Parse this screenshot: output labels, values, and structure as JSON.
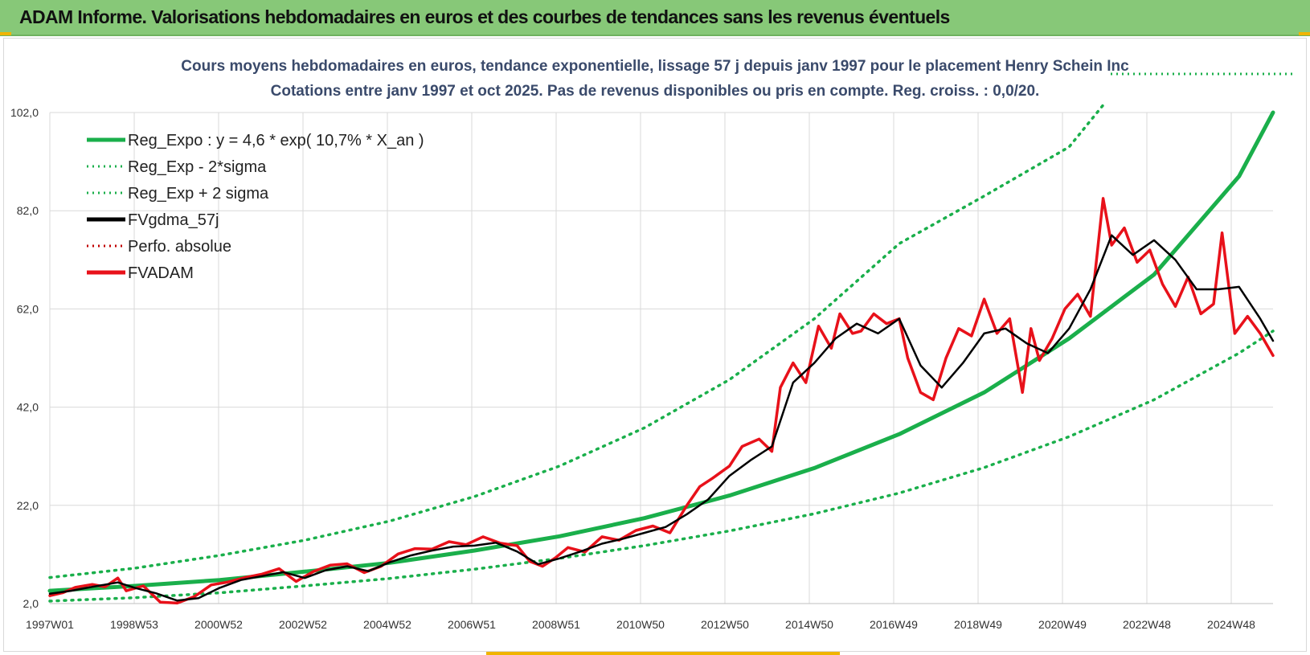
{
  "header": {
    "title": "ADAM Informe. Valorisations hebdomadaires en euros et des courbes de tendances sans les revenus éventuels"
  },
  "colors": {
    "banner": "#87c878",
    "trend_green": "#1aaf4b",
    "band_green": "#1aaf4b",
    "smooth_black": "#000000",
    "price_red": "#e8111a",
    "perf_red": "#c00000",
    "grid": "#d9d9d9"
  },
  "chart_data": {
    "type": "line",
    "title": "Cours moyens hebdomadaires en euros, tendance exponentielle, lissage 57 j depuis janv 1997 pour le placement Henry Schein Inc",
    "subtitle": "Cotations entre janv 1997 et oct 2025. Pas de revenus disponibles ou pris en compte. Reg. croiss. : 0,0/20.",
    "x_ticks": [
      "1997W01",
      "1998W53",
      "2000W52",
      "2002W52",
      "2004W52",
      "2006W51",
      "2008W51",
      "2010W50",
      "2012W50",
      "2014W50",
      "2016W49",
      "2018W49",
      "2020W49",
      "2022W48",
      "2024W48"
    ],
    "x_range": [
      1997.0,
      2025.8
    ],
    "y_ticks": [
      "2,0",
      "22,0",
      "42,0",
      "62,0",
      "82,0",
      "102,0"
    ],
    "ylim": [
      2,
      102
    ],
    "grid": true,
    "legend_position": "top-left",
    "legend": [
      {
        "label": "Reg_Expo : y = 4,6 * exp( 10,7% *  X_an )",
        "style": "solid",
        "color": "#1aaf4b"
      },
      {
        "label": "Reg_Exp - 2*sigma",
        "style": "dotted",
        "color": "#1aaf4b"
      },
      {
        "label": "Reg_Exp + 2 sigma",
        "style": "dotted",
        "color": "#1aaf4b"
      },
      {
        "label": "FVgdma_57j",
        "style": "solid",
        "color": "#000000"
      },
      {
        "label": "Perfo. absolue",
        "style": "dotted",
        "color": "#c00000"
      },
      {
        "label": "FVADAM",
        "style": "solid",
        "color": "#e8111a"
      }
    ],
    "series": [
      {
        "name": "Reg_Expo : y = 4,6 * exp( 10,7% *  X_an )",
        "x": [
          1997.0,
          1999.0,
          2001.0,
          2003.0,
          2005.0,
          2007.0,
          2009.0,
          2011.0,
          2013.0,
          2015.0,
          2017.0,
          2019.0,
          2021.0,
          2023.0,
          2025.0,
          2025.8
        ],
        "values": [
          4.6,
          5.6,
          6.8,
          8.5,
          10.3,
          12.8,
          15.7,
          19.4,
          24.0,
          29.6,
          36.5,
          45.0,
          56.0,
          69.0,
          89.0,
          102.0
        ]
      },
      {
        "name": "Reg_Exp - 2*sigma",
        "x": [
          1997.0,
          1999.0,
          2001.0,
          2003.0,
          2005.0,
          2007.0,
          2009.0,
          2011.0,
          2013.0,
          2015.0,
          2017.0,
          2019.0,
          2021.0,
          2023.0,
          2025.0,
          2025.8
        ],
        "values": [
          2.5,
          3.2,
          4.2,
          5.6,
          7.1,
          9.0,
          11.2,
          13.8,
          16.8,
          20.3,
          24.5,
          29.7,
          36.0,
          43.5,
          53.0,
          57.5
        ]
      },
      {
        "name": "Reg_Exp + 2 sigma",
        "x": [
          1997.0,
          1999.0,
          2001.0,
          2003.0,
          2005.0,
          2007.0,
          2009.0,
          2011.0,
          2013.0,
          2015.0,
          2017.0,
          2019.0,
          2021.0,
          2021.8
        ],
        "values": [
          7.3,
          9.2,
          11.8,
          14.9,
          18.8,
          23.8,
          30.0,
          37.8,
          47.6,
          60.0,
          75.3,
          85.0,
          95.0,
          103.5
        ]
      },
      {
        "name": "FVgdma_57j",
        "x": [
          1997.0,
          1997.5,
          1998.0,
          1998.6,
          1999.0,
          1999.5,
          2000.0,
          2000.5,
          2001.0,
          2001.5,
          2002.0,
          2002.5,
          2003.0,
          2003.5,
          2004.0,
          2004.5,
          2005.0,
          2005.5,
          2006.0,
          2006.5,
          2007.0,
          2007.5,
          2008.0,
          2008.5,
          2009.0,
          2009.5,
          2010.0,
          2010.5,
          2011.0,
          2011.5,
          2012.0,
          2012.5,
          2013.0,
          2013.5,
          2014.0,
          2014.5,
          2015.0,
          2015.5,
          2016.0,
          2016.5,
          2017.0,
          2017.5,
          2018.0,
          2018.5,
          2019.0,
          2019.5,
          2020.0,
          2020.5,
          2021.0,
          2021.5,
          2022.0,
          2022.5,
          2023.0,
          2023.5,
          2024.0,
          2024.5,
          2025.0,
          2025.5,
          2025.8
        ],
        "values": [
          4.0,
          4.6,
          5.4,
          6.3,
          5.2,
          4.1,
          2.6,
          3.1,
          5.2,
          6.8,
          7.6,
          8.4,
          7.2,
          8.8,
          9.6,
          8.6,
          10.4,
          11.8,
          12.8,
          13.6,
          13.8,
          14.4,
          12.6,
          10.0,
          11.2,
          12.6,
          14.2,
          15.2,
          16.4,
          17.6,
          20.2,
          23.2,
          28.0,
          31.2,
          34.0,
          47.0,
          51.0,
          56.0,
          59.0,
          57.0,
          60.0,
          50.5,
          46.0,
          51.0,
          57.0,
          58.0,
          55.0,
          53.0,
          58.0,
          66.0,
          77.0,
          73.0,
          76.0,
          72.0,
          66.0,
          66.0,
          66.5,
          60.0,
          55.5
        ]
      },
      {
        "name": "FVADAM",
        "x": [
          1997.0,
          1997.3,
          1997.6,
          1998.0,
          1998.3,
          1998.6,
          1998.8,
          1999.2,
          1999.6,
          2000.0,
          2000.4,
          2000.8,
          2001.2,
          2001.6,
          2002.0,
          2002.4,
          2002.8,
          2003.2,
          2003.6,
          2004.0,
          2004.4,
          2004.8,
          2005.2,
          2005.6,
          2006.0,
          2006.4,
          2006.8,
          2007.2,
          2007.6,
          2008.0,
          2008.3,
          2008.6,
          2008.9,
          2009.2,
          2009.6,
          2010.0,
          2010.4,
          2010.8,
          2011.2,
          2011.6,
          2012.0,
          2012.3,
          2012.6,
          2013.0,
          2013.3,
          2013.7,
          2014.0,
          2014.2,
          2014.5,
          2014.8,
          2015.1,
          2015.4,
          2015.6,
          2015.9,
          2016.1,
          2016.4,
          2016.7,
          2017.0,
          2017.2,
          2017.5,
          2017.8,
          2018.1,
          2018.4,
          2018.7,
          2019.0,
          2019.3,
          2019.6,
          2019.9,
          2020.1,
          2020.3,
          2020.6,
          2020.9,
          2021.2,
          2021.5,
          2021.8,
          2022.0,
          2022.3,
          2022.6,
          2022.9,
          2023.2,
          2023.5,
          2023.8,
          2024.1,
          2024.4,
          2024.6,
          2024.9,
          2025.2,
          2025.5,
          2025.8
        ],
        "values": [
          3.6,
          4.2,
          5.3,
          5.9,
          5.4,
          7.2,
          4.6,
          5.6,
          2.3,
          2.1,
          3.4,
          5.8,
          6.4,
          7.3,
          8.0,
          9.1,
          6.5,
          8.5,
          9.8,
          10.1,
          8.3,
          9.6,
          12.1,
          13.2,
          13.1,
          14.6,
          14.0,
          15.6,
          14.3,
          13.8,
          10.6,
          9.6,
          11.3,
          13.4,
          12.5,
          15.6,
          14.9,
          16.9,
          17.8,
          16.4,
          22.0,
          25.8,
          27.5,
          30.0,
          34.0,
          35.5,
          33.0,
          46.0,
          51.0,
          47.0,
          58.5,
          54.0,
          61.0,
          57.0,
          57.5,
          61.0,
          59.0,
          60.0,
          52.0,
          45.0,
          43.5,
          52.0,
          58.0,
          56.5,
          64.0,
          57.0,
          60.0,
          45.0,
          58.0,
          51.5,
          56.0,
          62.0,
          65.0,
          60.5,
          84.5,
          75.0,
          78.5,
          71.5,
          74.0,
          67.0,
          62.5,
          68.5,
          61.0,
          63.0,
          77.5,
          57.0,
          60.5,
          57.0,
          52.5
        ]
      }
    ]
  }
}
